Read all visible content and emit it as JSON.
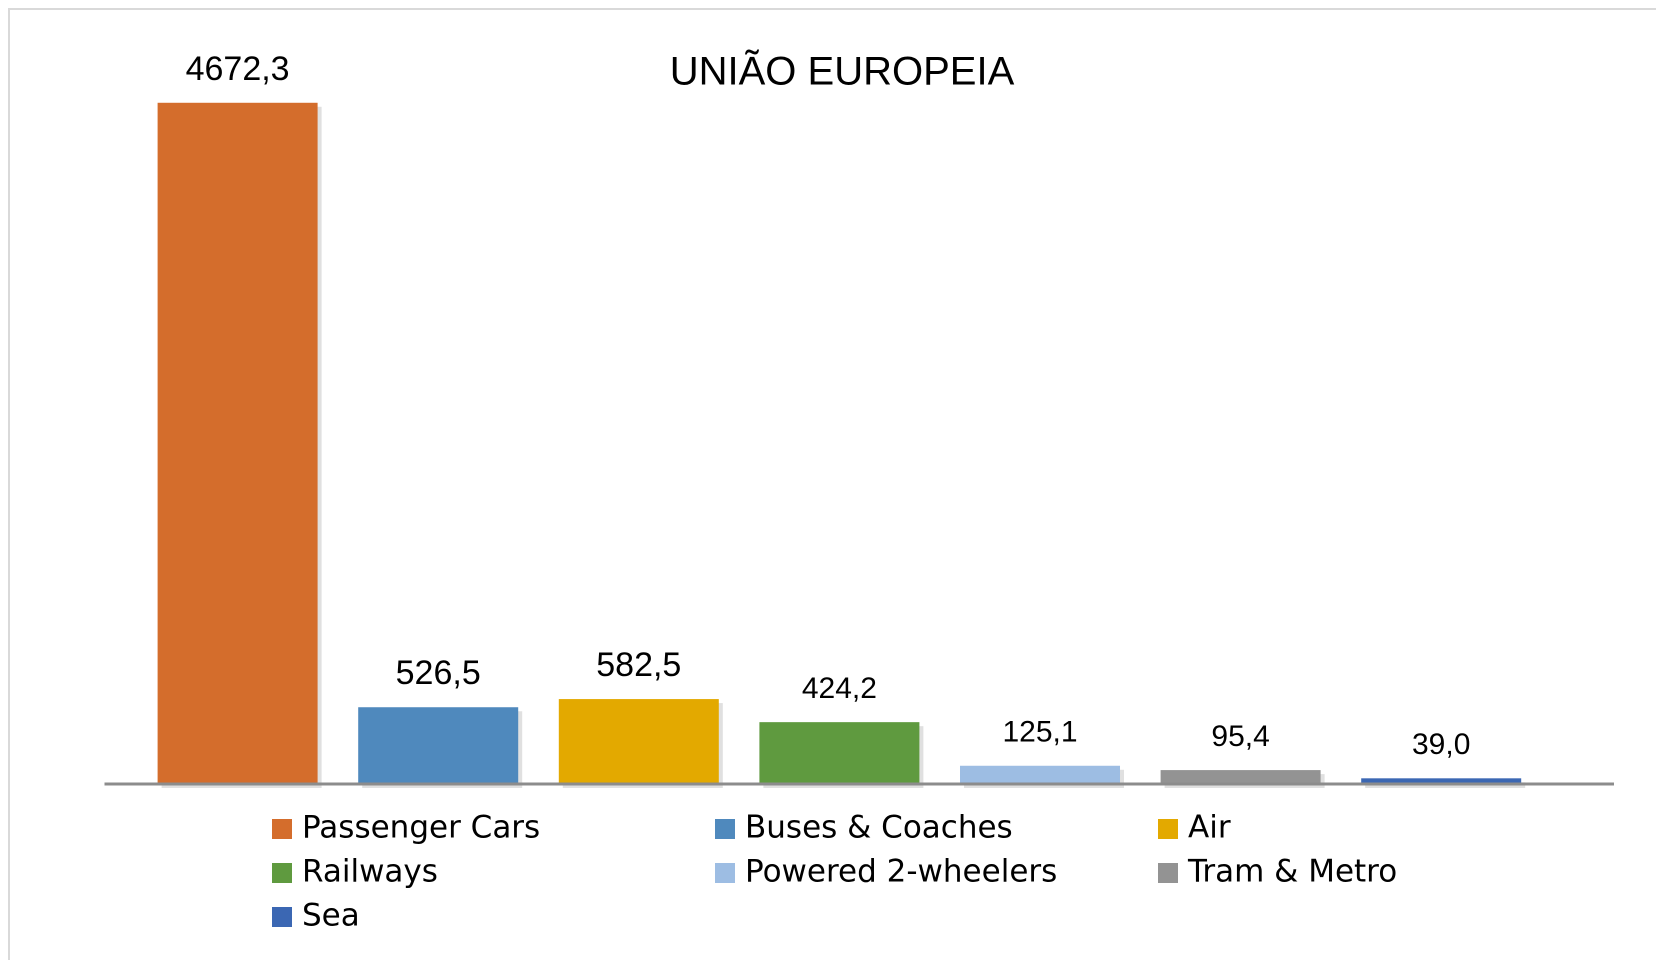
{
  "chart_data": {
    "type": "bar",
    "title": "UNIÃO EUROPEIA",
    "categories": [
      "Passenger Cars",
      "Buses & Coaches",
      "Air",
      "Railways",
      "Powered 2-wheelers",
      "Tram & Metro",
      "Sea"
    ],
    "values": [
      4672.3,
      526.5,
      582.5,
      424.2,
      125.1,
      95.4,
      39.0
    ],
    "value_labels": [
      "4672,3",
      "526,5",
      "582,5",
      "424,2",
      "125,1",
      "95,4",
      "39,0"
    ],
    "colors": [
      "#d46d2c",
      "#4f89bd",
      "#e3a900",
      "#5f9a3f",
      "#9dbde3",
      "#939393",
      "#3b67b3"
    ],
    "ylim": [
      0,
      5000
    ],
    "legend": "bottom"
  }
}
